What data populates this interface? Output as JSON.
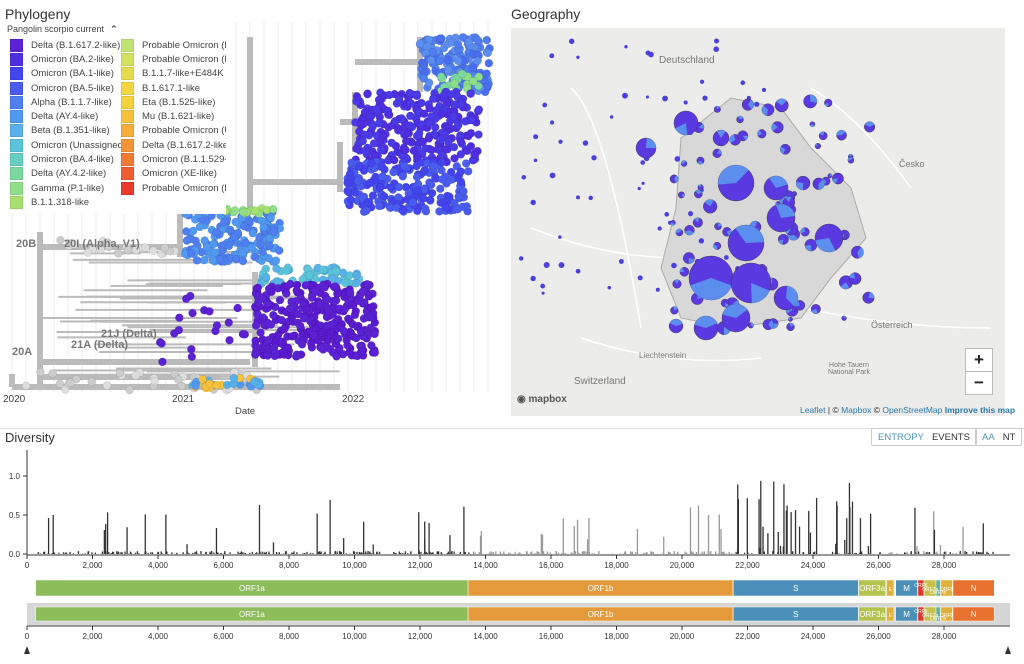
{
  "phylogeny": {
    "title": "Phylogeny",
    "legend_title": "Pangolin scorpio current",
    "legend": [
      {
        "label": "Delta (B.1.617.2-like)",
        "color": "#5b22d4"
      },
      {
        "label": "Omicron (BA.2-like)",
        "color": "#4f2ee0"
      },
      {
        "label": "Omicron (BA.1-like)",
        "color": "#4444ee"
      },
      {
        "label": "Omicron (BA.5-like)",
        "color": "#4a5cf0"
      },
      {
        "label": "Alpha (B.1.1.7-like)",
        "color": "#4f7ef0"
      },
      {
        "label": "Delta (AY.4-like)",
        "color": "#5199f0"
      },
      {
        "label": "Beta (B.1.351-like)",
        "color": "#58b0ea"
      },
      {
        "label": "Omicron (Unassigned)",
        "color": "#5cc4d8"
      },
      {
        "label": "Omicron (BA.4-like)",
        "color": "#66d0c0"
      },
      {
        "label": "Delta (AY.4.2-like)",
        "color": "#7ad8a0"
      },
      {
        "label": "Gamma (P.1-like)",
        "color": "#8fdf88"
      },
      {
        "label": "B.1.1.318-like",
        "color": "#a8e070"
      },
      {
        "label": "Probable Omicron (B.",
        "color": "#c1e373"
      },
      {
        "label": "Probable Omicron (B.",
        "color": "#d4e060"
      },
      {
        "label": "B.1.1.7-like+E484K",
        "color": "#e4dc4c"
      },
      {
        "label": "B.1.617.1-like",
        "color": "#f2d741"
      },
      {
        "label": "Eta (B.1.525-like)",
        "color": "#f5d13e"
      },
      {
        "label": "Mu (B.1.621-like)",
        "color": "#f6c13c"
      },
      {
        "label": "Probable Omicron (U",
        "color": "#f6ad3a"
      },
      {
        "label": "Delta (B.1.617.2-like)",
        "color": "#f49436"
      },
      {
        "label": "Omicron (B.1.1.529-li",
        "color": "#f27a33"
      },
      {
        "label": "Omicron (XE-like)",
        "color": "#ef5e30"
      },
      {
        "label": "Probable Omicron (B.",
        "color": "#ed3a2c"
      }
    ],
    "clade_labels": [
      "20B",
      "20I (Alpha, V1)",
      "21J (Delta)",
      "21A (Delta)",
      "20A"
    ],
    "x_ticks": [
      "2020",
      "2021",
      "2022"
    ],
    "x_label": "Date"
  },
  "geography": {
    "title": "Geography",
    "labels": [
      "Deutschland",
      "Česko",
      "Switzerland",
      "Liechtenstein",
      "Österreich",
      "Hohe Tauern National Park"
    ],
    "zoom_in": "+",
    "zoom_out": "−",
    "logo": "mapbox",
    "attribution": {
      "leaflet": "Leaflet",
      "sep": " | © ",
      "mapbox": "Mapbox",
      "osm_prefix": " © ",
      "osm": "OpenStreetMap",
      "improve": " Improve this map"
    }
  },
  "diversity": {
    "title": "Diversity",
    "toggle1": [
      "ENTROPY",
      "EVENTS"
    ],
    "toggle2": [
      "AA",
      "NT"
    ],
    "y_ticks": [
      "1.0",
      "0.5",
      "0.0"
    ],
    "x_ticks": [
      "0",
      "2,000",
      "4,000",
      "6,000",
      "8,000",
      "10,000",
      "12,000",
      "14,000",
      "16,000",
      "18,000",
      "20,000",
      "22,000",
      "24,000",
      "26,000",
      "28,000"
    ],
    "genes": [
      {
        "name": "ORF1a",
        "start": 266,
        "end": 13468,
        "color": "#8dbc5a"
      },
      {
        "name": "ORF1b",
        "start": 13468,
        "end": 21555,
        "color": "#e49a3a"
      },
      {
        "name": "S",
        "start": 21563,
        "end": 25384,
        "color": "#4a90b8"
      },
      {
        "name": "ORF3a",
        "start": 25393,
        "end": 26220,
        "color": "#b5c24d"
      },
      {
        "name": "E",
        "start": 26245,
        "end": 26472,
        "color": "#e0b13a"
      },
      {
        "name": "M",
        "start": 26523,
        "end": 27191,
        "color": "#4a90b8"
      },
      {
        "name": "ORF6",
        "start": 27202,
        "end": 27387,
        "color": "#e0382b"
      },
      {
        "name": "ORF7a",
        "start": 27394,
        "end": 27759,
        "color": "#c9c04a"
      },
      {
        "name": "ORF7b",
        "start": 27756,
        "end": 27887,
        "color": "#5fb49c"
      },
      {
        "name": "ORF8",
        "start": 27894,
        "end": 28259,
        "color": "#e0b13a"
      },
      {
        "name": "N",
        "start": 28274,
        "end": 29533,
        "color": "#e8712f"
      }
    ]
  }
}
